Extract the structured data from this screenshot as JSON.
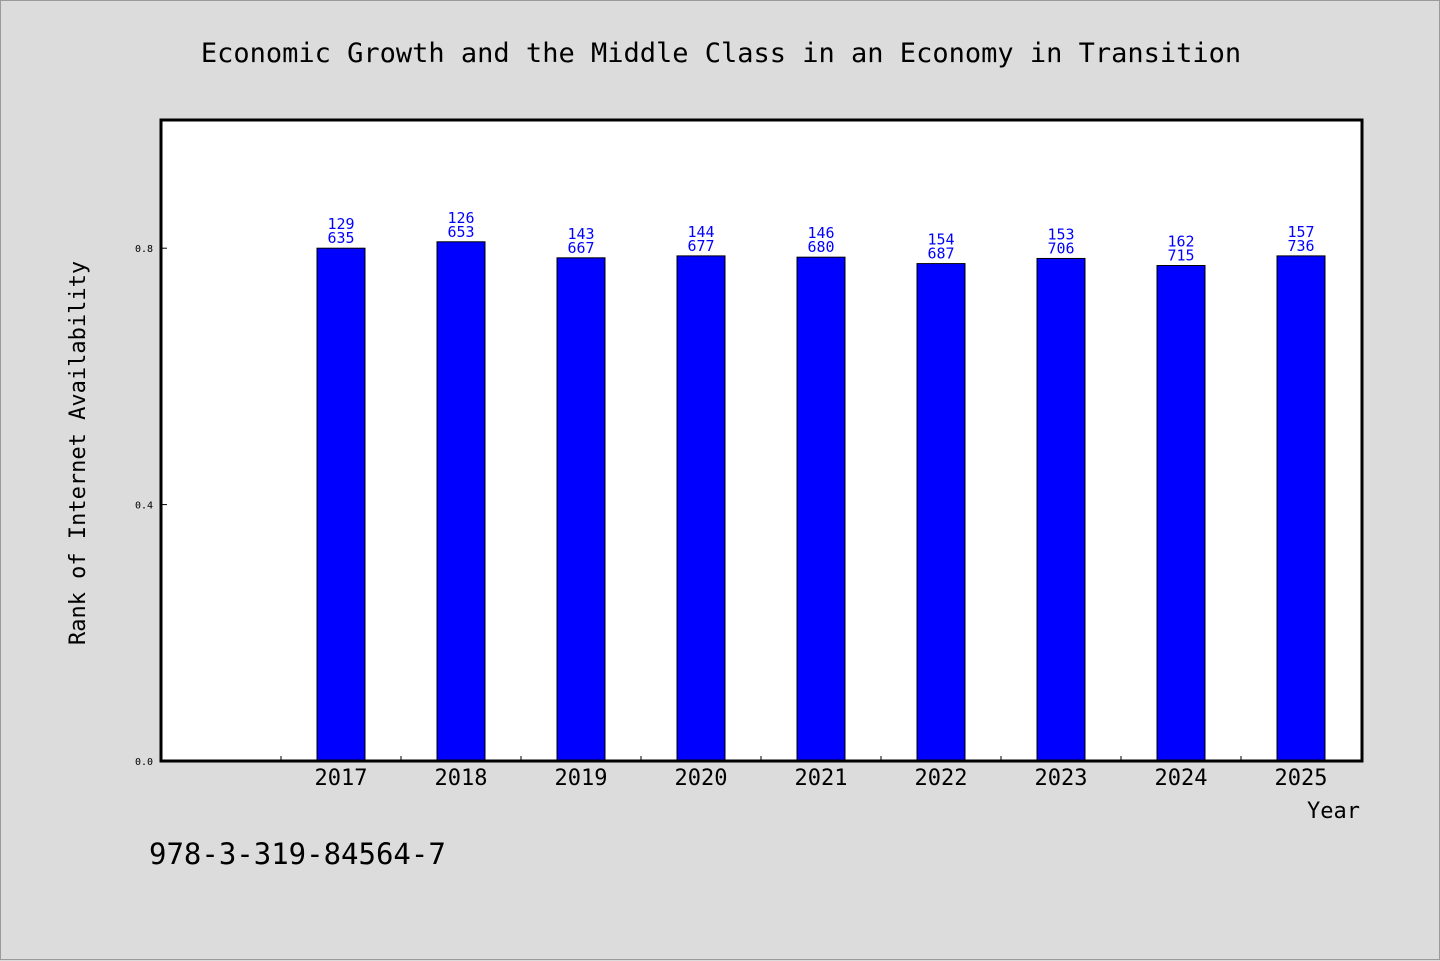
{
  "chart_data": {
    "type": "bar",
    "title": "Economic Growth and the Middle Class in an Economy in Transition",
    "xlabel": "Year",
    "ylabel": "Rank of Internet Availability",
    "categories": [
      "2017",
      "2018",
      "2019",
      "2020",
      "2021",
      "2022",
      "2023",
      "2024",
      "2025"
    ],
    "values": [
      0.8,
      0.81,
      0.785,
      0.788,
      0.786,
      0.776,
      0.784,
      0.773,
      0.788
    ],
    "label_top": [
      "129",
      "126",
      "143",
      "144",
      "146",
      "154",
      "153",
      "162",
      "157"
    ],
    "label_bottom": [
      "635",
      "653",
      "667",
      "677",
      "680",
      "687",
      "706",
      "715",
      "736"
    ],
    "ylim": [
      0,
      1.0
    ],
    "yticks": [
      0.0,
      0.4,
      0.8
    ],
    "ytick_labels": [
      "0.0",
      "0.4",
      "0.8"
    ],
    "bar_color": "#0000ff",
    "label_color": "#0000ff",
    "grid": false,
    "legend": "none"
  },
  "footer_text": "978-3-319-84564-7"
}
